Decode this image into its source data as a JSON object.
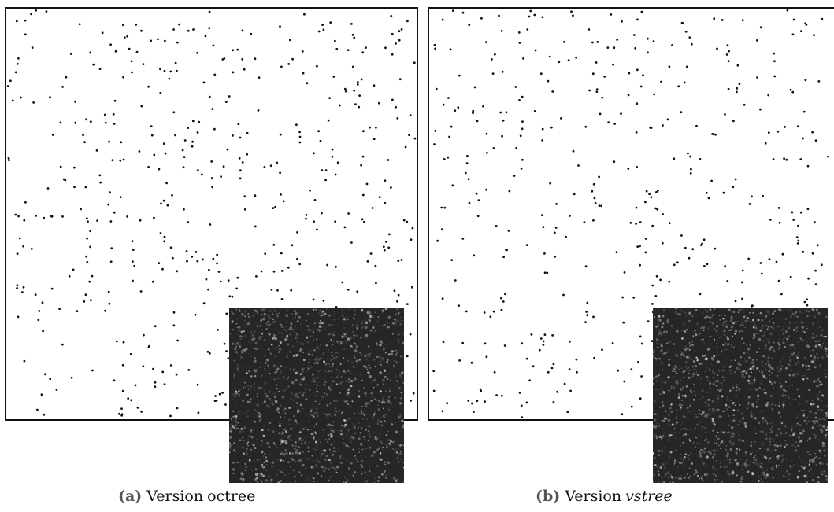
{
  "figure": {
    "panels": [
      {
        "id": "a",
        "caption_tag": "(a)",
        "caption_word": "Version",
        "caption_name": "octree",
        "name_italic": false,
        "point_count": 520,
        "seed": 11
      },
      {
        "id": "b",
        "caption_tag": "(b)",
        "caption_word": "Version",
        "caption_name": "vstree",
        "name_italic": true,
        "point_count": 470,
        "seed": 29
      }
    ]
  }
}
